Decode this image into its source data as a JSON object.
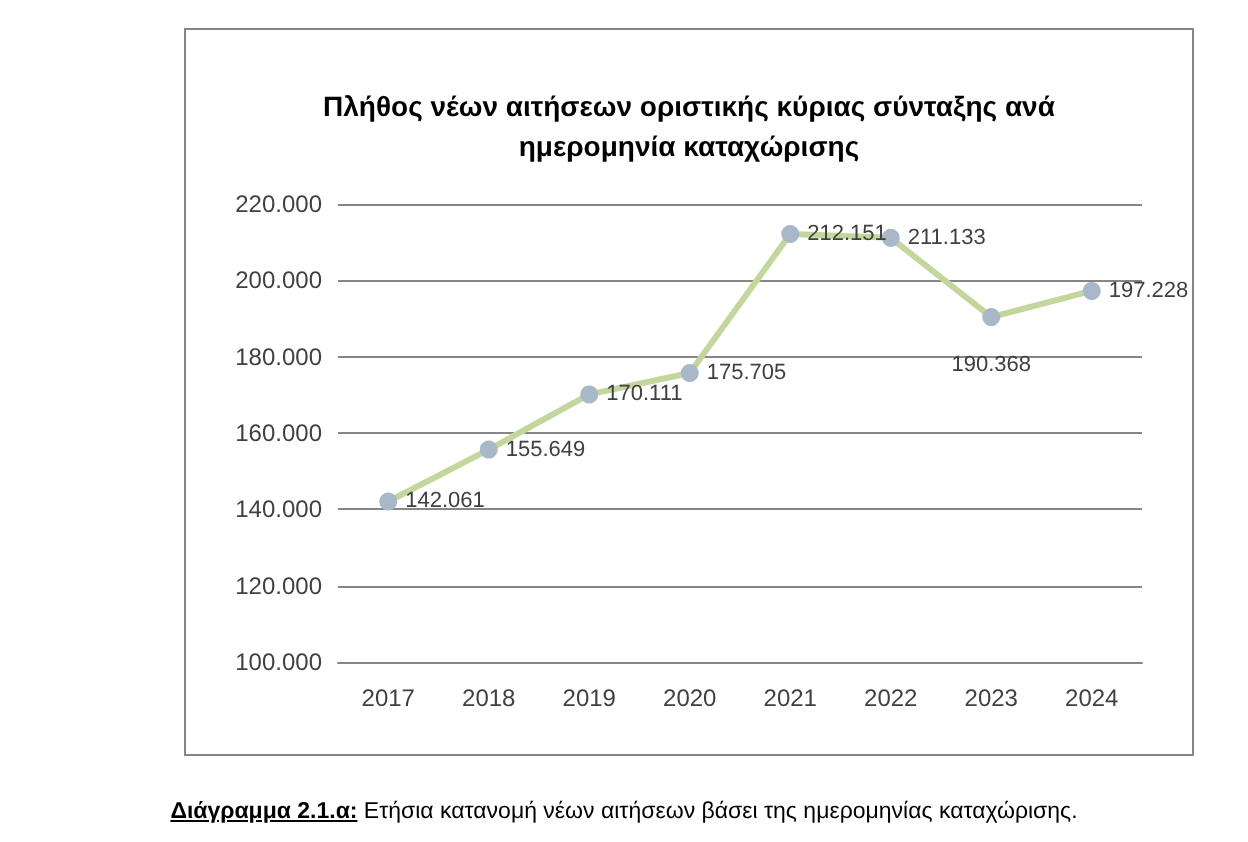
{
  "chart_data": {
    "type": "line",
    "title": "Πλήθος νέων αιτήσεων οριστικής κύριας σύνταξης ανά ημερομηνία καταχώρισης",
    "categories": [
      "2017",
      "2018",
      "2019",
      "2020",
      "2021",
      "2022",
      "2023",
      "2024"
    ],
    "series": [
      {
        "color": "#c3d69b",
        "values": [
          142061,
          155649,
          170111,
          175705,
          212151,
          211133,
          190368,
          197228
        ],
        "value_labels": [
          "142.061",
          "155.649",
          "170.111",
          "175.705",
          "212.151",
          "211.133",
          "190.368",
          "197.228"
        ]
      }
    ],
    "ylim": [
      100000,
      220000
    ],
    "yticks": [
      {
        "value": 100000,
        "label": "100.000"
      },
      {
        "value": 120000,
        "label": "120.000"
      },
      {
        "value": 140000,
        "label": "140.000"
      },
      {
        "value": 160000,
        "label": "160.000"
      },
      {
        "value": 180000,
        "label": "180.000"
      },
      {
        "value": 200000,
        "label": "200.000"
      },
      {
        "value": 220000,
        "label": "220.000"
      }
    ],
    "grid": "y",
    "marker": "circle",
    "line_style": "solid",
    "annotations": [
      "Διάγραμμα 2.1.α: Ετήσια κατανομή νέων αιτήσεων βάσει της ημερομηνίας καταχώρισης."
    ]
  }
}
